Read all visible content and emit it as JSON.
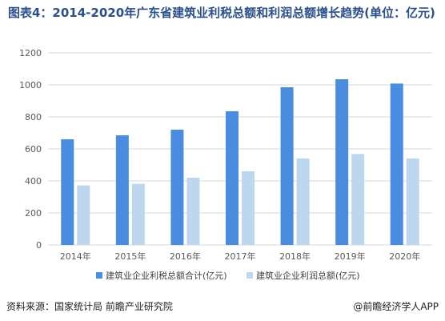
{
  "title": "图表4：2014-2020年广东省建筑业利税总额和利润总额增长趋势(单位：亿元)",
  "footer": {
    "source": "资料来源：国家统计局 前瞻产业研究院",
    "brand": "@前瞻经济学人APP"
  },
  "colors": {
    "title": "#2a4f8c",
    "series1": "#4a8de0",
    "series2": "#bdd7ef",
    "grid": "#d9d9d9",
    "axis_text": "#595959"
  },
  "chart_data": {
    "type": "bar",
    "categories": [
      "2014年",
      "2015年",
      "2016年",
      "2017年",
      "2018年",
      "2019年",
      "2020年"
    ],
    "series": [
      {
        "name": "建筑业企业利税总额合计(亿元)",
        "values": [
          660,
          685,
          720,
          835,
          985,
          1035,
          1008
        ]
      },
      {
        "name": "建筑业企业利润总额(亿元)",
        "values": [
          372,
          382,
          420,
          460,
          540,
          568,
          540
        ]
      }
    ],
    "ylim": [
      0,
      1200
    ],
    "yticks": [
      0,
      200,
      400,
      600,
      800,
      1000,
      1200
    ],
    "grid": true,
    "legend": "bottom"
  }
}
